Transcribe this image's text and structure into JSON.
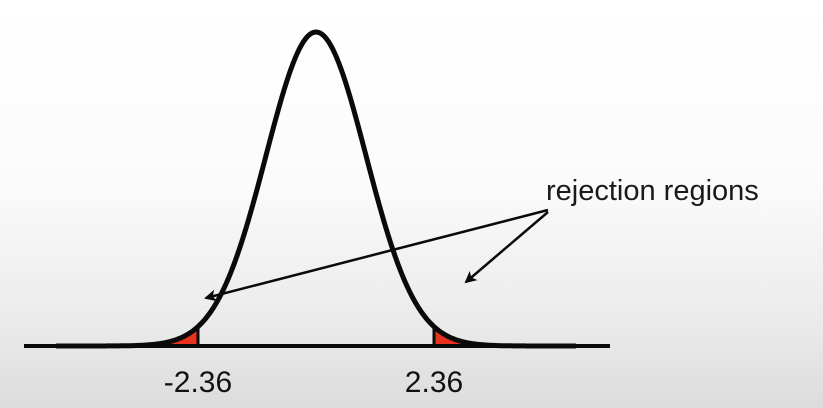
{
  "diagram": {
    "type": "normal-distribution-two-tailed-test",
    "critical_values": [
      {
        "value": -2.36,
        "label": "-2.36"
      },
      {
        "value": 2.36,
        "label": "2.36"
      }
    ],
    "annotation": {
      "text": "rejection regions"
    },
    "colors": {
      "curve": "#0a0a0a",
      "rejection_fill": "#e8321f",
      "axis": "#0a0a0a",
      "arrow": "#0a0a0a",
      "text": "#111111"
    }
  }
}
